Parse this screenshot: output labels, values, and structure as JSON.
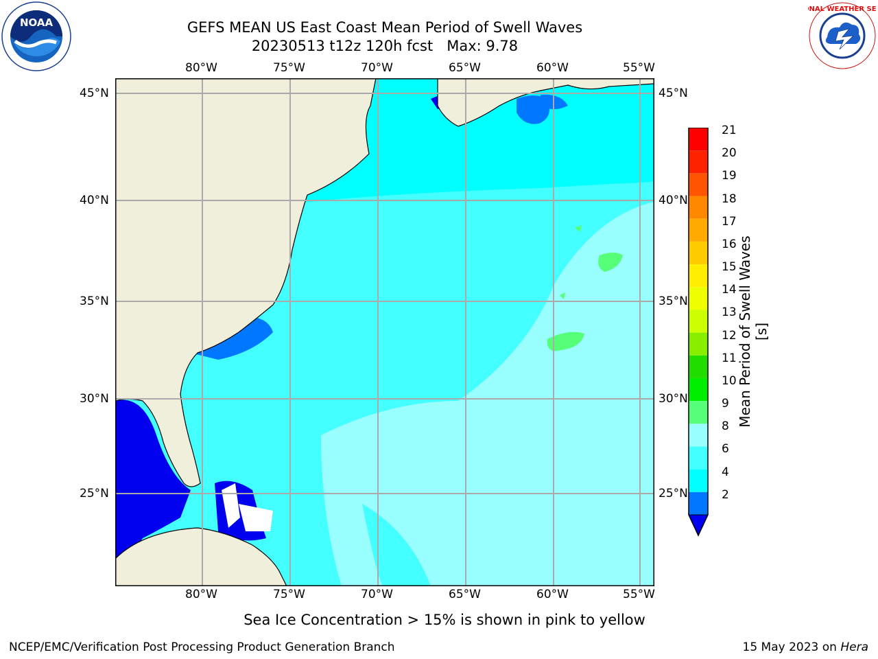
{
  "title": {
    "line1": "GEFS MEAN US East Coast Mean Period of Swell Waves",
    "line2": "20230513 t12z 120h fcst   Max: 9.78"
  },
  "map": {
    "lon_labels": [
      "80°W",
      "75°W",
      "70°W",
      "65°W",
      "60°W",
      "55°W"
    ],
    "lat_labels": [
      "45°N",
      "40°N",
      "35°N",
      "30°N",
      "25°N"
    ]
  },
  "colorbar": {
    "label": "Mean Period of Swell Waves [s]",
    "ticks": [
      "21",
      "20",
      "19",
      "18",
      "17",
      "16",
      "15",
      "14",
      "13",
      "12",
      "11",
      "10",
      "9",
      "8",
      "6",
      "4",
      "2"
    ],
    "colors": [
      "#ff0000",
      "#ff2200",
      "#ff5500",
      "#ff8800",
      "#ffaa00",
      "#ffcc00",
      "#ffee00",
      "#eeff00",
      "#ccff00",
      "#88ee00",
      "#22dd00",
      "#00ee00",
      "#55ff77",
      "#99ffff",
      "#44ffff",
      "#00ffff",
      "#0077ff"
    ],
    "under_color": "#0000ee"
  },
  "subtitle": "Sea Ice Concentration > 15% is shown in pink to yellow",
  "footer": {
    "left": "NCEP/EMC/Verification Post Processing Product Generation Branch",
    "date": "15 May 2023 on ",
    "machine": "Hera"
  },
  "logos": {
    "noaa_text": "NOAA",
    "nws_text": "NATIONAL WEATHER SERVICE"
  }
}
